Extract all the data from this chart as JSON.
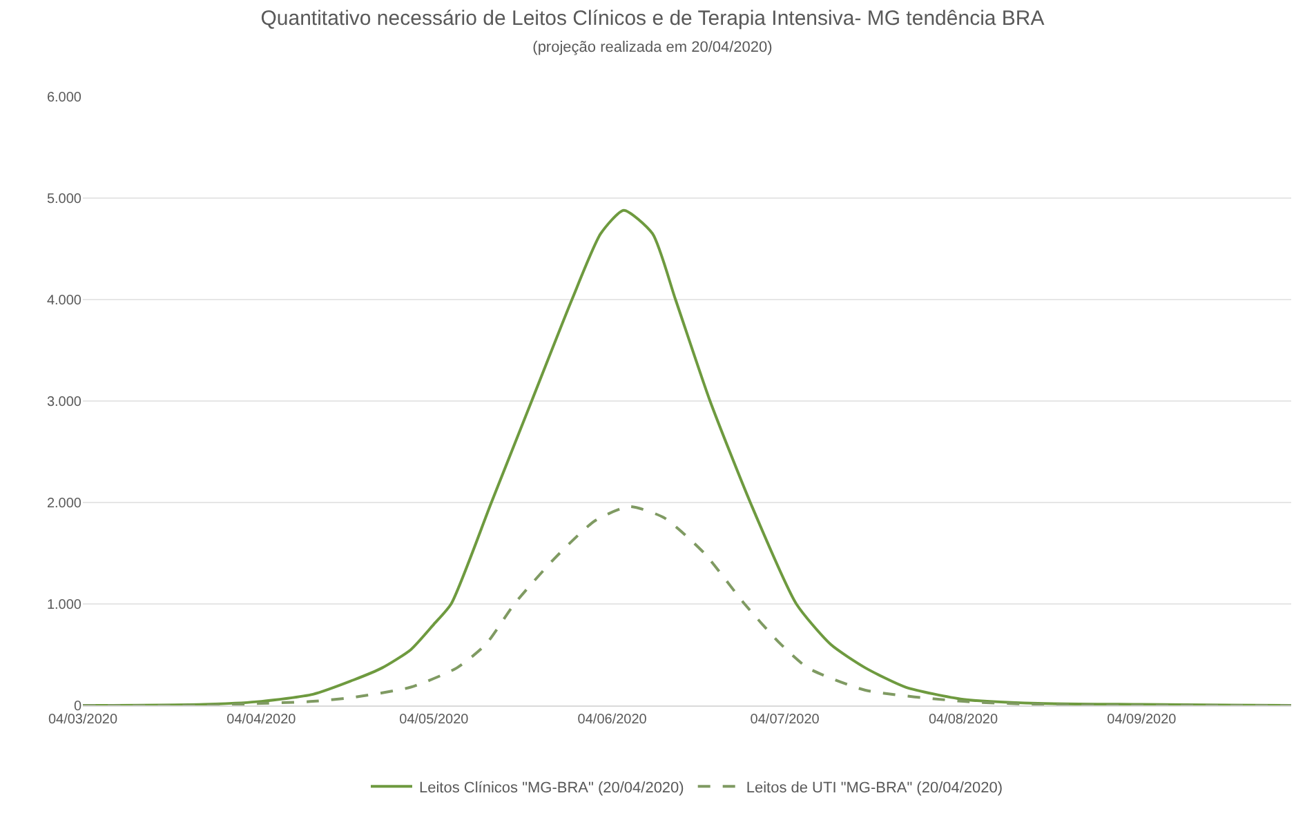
{
  "chart_data": {
    "type": "line",
    "title": "Quantitativo necessário de Leitos Clínicos e de Terapia Intensiva- MG tendência BRA",
    "subtitle": "(projeção realizada em 20/04/2020)",
    "series": [
      {
        "name": "Leitos Clínicos \"MG-BRA\" (20/04/2020)",
        "color": "#6e9a3f",
        "line_style": "solid",
        "x": [
          "2020-03-04",
          "2020-03-25",
          "2020-04-04",
          "2020-04-13",
          "2020-04-20",
          "2020-04-25",
          "2020-04-30",
          "2020-05-04",
          "2020-05-07",
          "2020-05-14",
          "2020-05-21",
          "2020-05-28",
          "2020-06-02",
          "2020-06-06",
          "2020-06-11",
          "2020-06-15",
          "2020-06-21",
          "2020-06-28",
          "2020-07-06",
          "2020-07-12",
          "2020-07-18",
          "2020-07-25",
          "2020-08-04",
          "2020-08-17",
          "2020-09-04",
          "2020-09-30"
        ],
        "values": [
          0,
          10,
          40,
          110,
          250,
          370,
          550,
          800,
          1000,
          2000,
          3000,
          4000,
          4650,
          4880,
          4650,
          4000,
          3000,
          2000,
          1000,
          600,
          370,
          180,
          60,
          20,
          10,
          0
        ]
      },
      {
        "name": "Leitos de UTI \"MG-BRA\" (20/04/2020)",
        "color": "#7f9a62",
        "line_style": "dashed",
        "x": [
          "2020-03-04",
          "2020-03-25",
          "2020-04-04",
          "2020-04-13",
          "2020-04-20",
          "2020-04-30",
          "2020-05-08",
          "2020-05-13",
          "2020-05-18",
          "2020-05-25",
          "2020-06-01",
          "2020-06-07",
          "2020-06-13",
          "2020-06-20",
          "2020-06-27",
          "2020-07-03",
          "2020-07-08",
          "2020-07-18",
          "2020-08-04",
          "2020-08-17",
          "2020-09-04",
          "2020-09-30"
        ],
        "values": [
          0,
          0,
          20,
          40,
          80,
          180,
          370,
          600,
          1000,
          1450,
          1820,
          1960,
          1850,
          1500,
          1000,
          620,
          370,
          150,
          40,
          10,
          0,
          0
        ]
      }
    ],
    "xlim": [
      "2020-03-04",
      "2020-09-30"
    ],
    "xticks": [
      {
        "value": "2020-03-04",
        "label": "04/03/2020"
      },
      {
        "value": "2020-04-04",
        "label": "04/04/2020"
      },
      {
        "value": "2020-05-04",
        "label": "04/05/2020"
      },
      {
        "value": "2020-06-04",
        "label": "04/06/2020"
      },
      {
        "value": "2020-07-04",
        "label": "04/07/2020"
      },
      {
        "value": "2020-08-04",
        "label": "04/08/2020"
      },
      {
        "value": "2020-09-04",
        "label": "04/09/2020"
      }
    ],
    "ylim": [
      0,
      6000
    ],
    "yticks": [
      {
        "value": 0,
        "label": "0"
      },
      {
        "value": 1000,
        "label": "1.000"
      },
      {
        "value": 2000,
        "label": "2.000"
      },
      {
        "value": 3000,
        "label": "3.000"
      },
      {
        "value": 4000,
        "label": "4.000"
      },
      {
        "value": 5000,
        "label": "5.000"
      },
      {
        "value": 6000,
        "label": "6.000"
      }
    ],
    "grid": "y",
    "legend": "bottom",
    "marker": "none"
  }
}
